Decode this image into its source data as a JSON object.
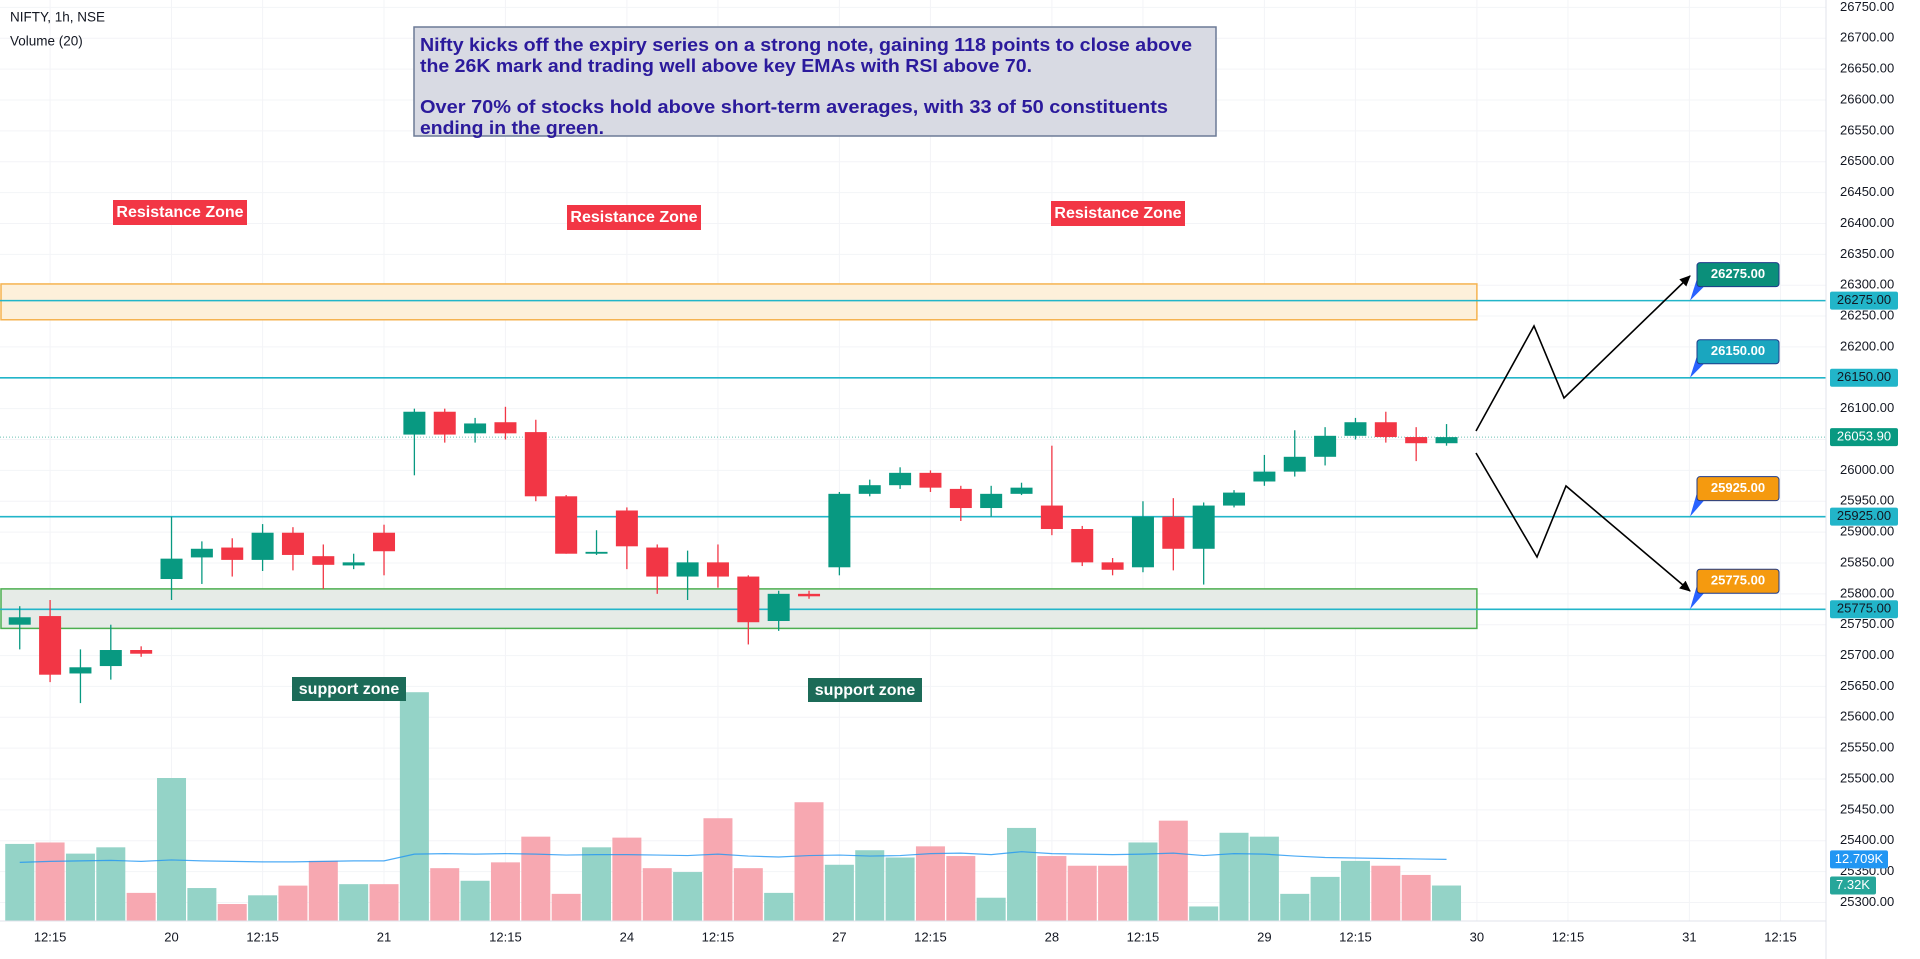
{
  "header": {
    "symbol": "NIFTY, 1h, NSE",
    "volume_indicator": "Volume (20)"
  },
  "note": [
    "Nifty kicks off the expiry series on a strong note, gaining 118 points to close above",
    "the 26K mark and trading well above key EMAs with RSI above 70.",
    "Over 70% of stocks hold above short-term averages, with 33 of 50 constituents",
    "ending in the green."
  ],
  "chart_data": {
    "type": "candlestick",
    "x": [
      0,
      1,
      2,
      3,
      4,
      5,
      6,
      7,
      8,
      9,
      10,
      11,
      12,
      13,
      14,
      15,
      16,
      17,
      18,
      19,
      20,
      21,
      22,
      23,
      24,
      25,
      26,
      27,
      28,
      29,
      30,
      31,
      32,
      33,
      34,
      35,
      36,
      37,
      38,
      39,
      40,
      41,
      42,
      43,
      44,
      45,
      46,
      47
    ],
    "open": [
      25750,
      25764,
      25671,
      25683,
      25709,
      25824,
      25859,
      25875,
      25855,
      25899,
      25861,
      25846,
      25899,
      26058,
      26095,
      26060,
      26078,
      26062,
      25958,
      25865,
      25935,
      25875,
      25828,
      25851,
      25828,
      25756,
      25800,
      25843,
      25962,
      25976,
      25996,
      25970,
      25939,
      25962,
      25943,
      25905,
      25851,
      25843,
      25925,
      25873,
      25943,
      25982,
      25998,
      26022,
      26056,
      26078,
      26054,
      26044
    ],
    "high": [
      25780,
      25790,
      25710,
      25750,
      25715,
      25925,
      25885,
      25890,
      25913,
      25908,
      25880,
      25865,
      25912,
      26100,
      26100,
      26085,
      26103,
      26082,
      25960,
      25903,
      25940,
      25880,
      25870,
      25880,
      25830,
      25805,
      25805,
      25965,
      25985,
      26005,
      26000,
      25975,
      25975,
      25980,
      26040,
      25910,
      25858,
      25950,
      25955,
      25948,
      25968,
      26025,
      26065,
      26070,
      26085,
      26095,
      26070,
      26075
    ],
    "low": [
      25710,
      25657,
      25623,
      25661,
      25698,
      25790,
      25816,
      25828,
      25837,
      25838,
      25808,
      25840,
      25830,
      25992,
      26045,
      26045,
      26050,
      25950,
      25865,
      25863,
      25840,
      25800,
      25790,
      25810,
      25718,
      25740,
      25792,
      25830,
      25958,
      25970,
      25965,
      25918,
      25925,
      25960,
      25895,
      25845,
      25830,
      25835,
      25838,
      25815,
      25940,
      25975,
      25990,
      26008,
      26050,
      26045,
      26015,
      26040
    ],
    "close": [
      25762,
      25669,
      25681,
      25709,
      25703,
      25857,
      25873,
      25855,
      25899,
      25863,
      25847,
      25851,
      25869,
      26095,
      26058,
      26076,
      26060,
      25958,
      25865,
      25868,
      25877,
      25828,
      25851,
      25828,
      25754,
      25800,
      25796,
      25962,
      25976,
      25996,
      25972,
      25939,
      25962,
      25972,
      25905,
      25851,
      25839,
      25925,
      25873,
      25943,
      25964,
      25998,
      26022,
      26056,
      26078,
      26054,
      26044,
      26053.9
    ],
    "up_color": "#089981",
    "down_color": "#f23645",
    "xlim": [
      -0.65,
      59.5
    ],
    "xticks": [
      {
        "value": 1,
        "label": "12:15"
      },
      {
        "value": 5,
        "label": "20"
      },
      {
        "value": 8,
        "label": "12:15"
      },
      {
        "value": 12,
        "label": "21"
      },
      {
        "value": 16,
        "label": "12:15"
      },
      {
        "value": 20,
        "label": "24"
      },
      {
        "value": 23,
        "label": "12:15"
      },
      {
        "value": 27,
        "label": "27"
      },
      {
        "value": 30,
        "label": "12:15"
      },
      {
        "value": 34,
        "label": "28"
      },
      {
        "value": 37,
        "label": "12:15"
      },
      {
        "value": 41,
        "label": "29"
      },
      {
        "value": 44,
        "label": "12:15"
      },
      {
        "value": 48,
        "label": "30"
      },
      {
        "value": 51,
        "label": "12:15"
      },
      {
        "value": 55,
        "label": "31"
      },
      {
        "value": 58,
        "label": "12:15"
      }
    ],
    "ylim": [
      25270,
      26762
    ],
    "yticks": [
      {
        "value": 25300,
        "label": "25300.00"
      },
      {
        "value": 25350,
        "label": "25350.00"
      },
      {
        "value": 25400,
        "label": "25400.00"
      },
      {
        "value": 25450,
        "label": "25450.00"
      },
      {
        "value": 25500,
        "label": "25500.00"
      },
      {
        "value": 25550,
        "label": "25550.00"
      },
      {
        "value": 25600,
        "label": "25600.00"
      },
      {
        "value": 25650,
        "label": "25650.00"
      },
      {
        "value": 25700,
        "label": "25700.00"
      },
      {
        "value": 25750,
        "label": "25750.00"
      },
      {
        "value": 25800,
        "label": "25800.00"
      },
      {
        "value": 25850,
        "label": "25850.00"
      },
      {
        "value": 25900,
        "label": "25900.00"
      },
      {
        "value": 25950,
        "label": "25950.00"
      },
      {
        "value": 26000,
        "label": "26000.00"
      },
      {
        "value": 26050,
        "label": "26050.00"
      },
      {
        "value": 26100,
        "label": "26100.00"
      },
      {
        "value": 26150,
        "label": "26150.00"
      },
      {
        "value": 26200,
        "label": "26200.00"
      },
      {
        "value": 26250,
        "label": "26250.00"
      },
      {
        "value": 26300,
        "label": "26300.00"
      },
      {
        "value": 26350,
        "label": "26350.00"
      },
      {
        "value": 26400,
        "label": "26400.00"
      },
      {
        "value": 26450,
        "label": "26450.00"
      },
      {
        "value": 26500,
        "label": "26500.00"
      },
      {
        "value": 26550,
        "label": "26550.00"
      },
      {
        "value": 26600,
        "label": "26600.00"
      },
      {
        "value": 26650,
        "label": "26650.00"
      },
      {
        "value": 26700,
        "label": "26700.00"
      },
      {
        "value": 26750,
        "label": "26750.00"
      }
    ],
    "grid": true,
    "last_price": {
      "value": 26053.9,
      "label": "26053.90"
    },
    "levels": [
      {
        "value": 26275,
        "label": "26275.00",
        "callout_color": "#0b8f7a"
      },
      {
        "value": 26150,
        "label": "26150.00",
        "callout_color": "#1aa6bf"
      },
      {
        "value": 25925,
        "label": "25925.00",
        "callout_color": "#f59a0f"
      },
      {
        "value": 25775,
        "label": "25775.00",
        "callout_color": "#f59a0f"
      }
    ],
    "level_color": "#22b5c9",
    "zones": [
      {
        "low": 26244,
        "high": 26302,
        "x_end": 48,
        "fill": "#fdf0da",
        "stroke": "#f5b350"
      },
      {
        "low": 25744,
        "high": 25808,
        "x_end": 48,
        "fill": "#e6ebe7",
        "stroke": "#4caf50"
      }
    ],
    "resistance_labels": [
      "Resistance Zone",
      "Resistance Zone",
      "Resistance Zone"
    ],
    "resistance_label_color": "#f23645",
    "support_labels": [
      "support zone",
      "support zone"
    ],
    "support_label_color": "#1c6b58",
    "volume": {
      "values": [
        15.9,
        16.2,
        13.9,
        15.2,
        5.8,
        29.5,
        6.8,
        3.5,
        5.3,
        7.3,
        12.4,
        7.6,
        7.6,
        47.2,
        10.9,
        8.3,
        12.1,
        17.4,
        5.6,
        15.2,
        17.2,
        10.9,
        10.1,
        21.2,
        10.9,
        5.8,
        24.5,
        11.6,
        14.6,
        13.1,
        15.4,
        13.4,
        4.8,
        19.2,
        13.4,
        11.4,
        11.4,
        16.2,
        20.7,
        3,
        18.2,
        17.4,
        5.6,
        9.1,
        12.4,
        11.4,
        9.5,
        7.32
      ],
      "last_value_label": "7.32K",
      "ma": [
        12.1,
        12.3,
        12.4,
        12.5,
        12.3,
        12.6,
        12.4,
        12.3,
        12.2,
        12.2,
        12.3,
        12.4,
        12.4,
        13.8,
        13.9,
        13.8,
        13.9,
        13.8,
        13.6,
        13.7,
        13.7,
        13.6,
        13.5,
        13.8,
        13.4,
        13.2,
        13.5,
        13.6,
        13.4,
        13.5,
        13.9,
        14.0,
        13.7,
        14.3,
        13.9,
        13.8,
        13.7,
        13.8,
        14.0,
        13.5,
        13.9,
        13.8,
        13.4,
        13.1,
        13.0,
        12.9,
        12.8,
        12.709
      ],
      "ma_last_label": "12.709K",
      "ylim": [
        0,
        190
      ],
      "up_color": "#94d3c7",
      "down_color": "#f7a8b1",
      "ma_color": "#2196f3"
    }
  }
}
